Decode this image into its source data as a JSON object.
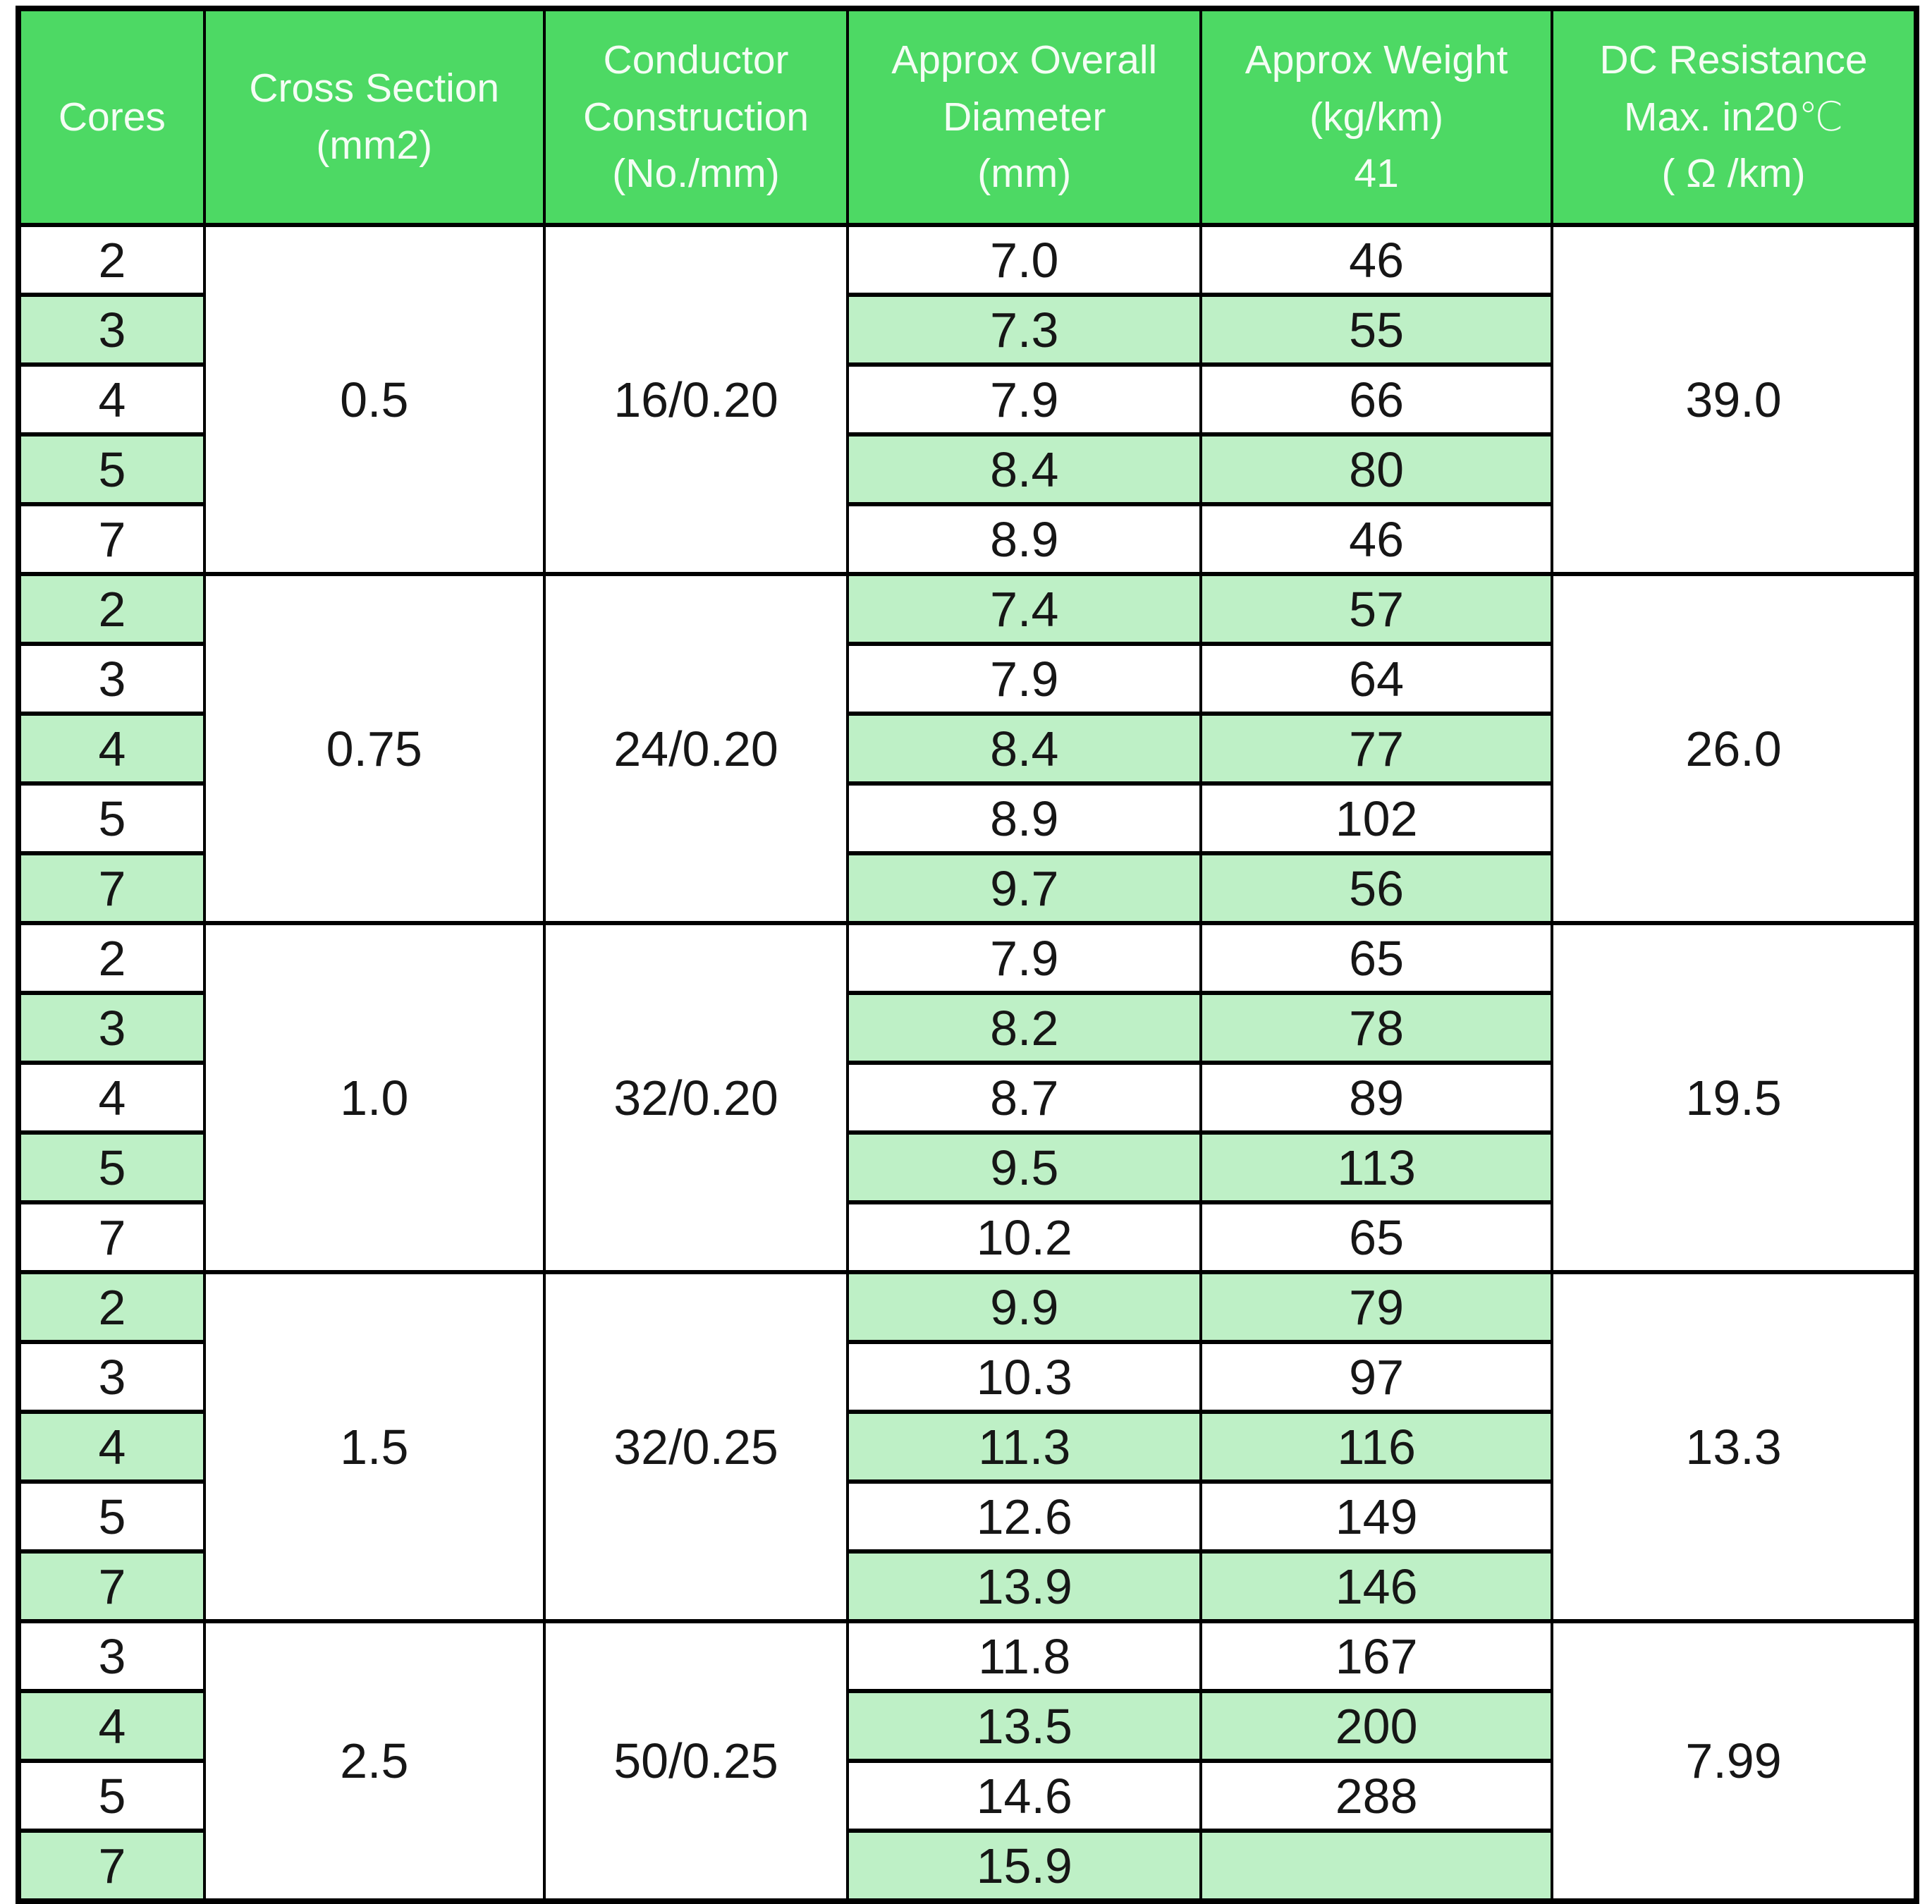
{
  "colors": {
    "header_bg": "#4dd964",
    "stripe_bg": "#bef0c6",
    "border": "#000000",
    "header_text": "#f4fdf4",
    "cell_text": "#161616"
  },
  "table": {
    "headers": [
      {
        "lines": [
          "Cores"
        ]
      },
      {
        "lines": [
          "Cross Section",
          "(mm2)"
        ]
      },
      {
        "lines": [
          "Conductor",
          "Construction",
          "(No./mm)"
        ]
      },
      {
        "lines": [
          "Approx Overall",
          "Diameter",
          "(mm)"
        ]
      },
      {
        "lines": [
          "Approx Weight",
          "(kg/km)",
          "41"
        ]
      },
      {
        "lines": [
          "DC Resistance",
          "Max. in20℃",
          "( Ω /km)"
        ]
      }
    ],
    "groups": [
      {
        "cross_section": "0.5",
        "construction": "16/0.20",
        "dc_resistance": "39.0",
        "rows": [
          {
            "cores": "2",
            "diameter": "7.0",
            "weight": "46"
          },
          {
            "cores": "3",
            "diameter": "7.3",
            "weight": "55"
          },
          {
            "cores": "4",
            "diameter": "7.9",
            "weight": "66"
          },
          {
            "cores": "5",
            "diameter": "8.4",
            "weight": "80"
          },
          {
            "cores": "7",
            "diameter": "8.9",
            "weight": "46"
          }
        ]
      },
      {
        "cross_section": "0.75",
        "construction": "24/0.20",
        "dc_resistance": "26.0",
        "rows": [
          {
            "cores": "2",
            "diameter": "7.4",
            "weight": "57"
          },
          {
            "cores": "3",
            "diameter": "7.9",
            "weight": "64"
          },
          {
            "cores": "4",
            "diameter": "8.4",
            "weight": "77"
          },
          {
            "cores": "5",
            "diameter": "8.9",
            "weight": "102"
          },
          {
            "cores": "7",
            "diameter": "9.7",
            "weight": "56"
          }
        ]
      },
      {
        "cross_section": "1.0",
        "construction": "32/0.20",
        "dc_resistance": "19.5",
        "rows": [
          {
            "cores": "2",
            "diameter": "7.9",
            "weight": "65"
          },
          {
            "cores": "3",
            "diameter": "8.2",
            "weight": "78"
          },
          {
            "cores": "4",
            "diameter": "8.7",
            "weight": "89"
          },
          {
            "cores": "5",
            "diameter": "9.5",
            "weight": "113"
          },
          {
            "cores": "7",
            "diameter": "10.2",
            "weight": "65"
          }
        ]
      },
      {
        "cross_section": "1.5",
        "construction": "32/0.25",
        "dc_resistance": "13.3",
        "rows": [
          {
            "cores": "2",
            "diameter": "9.9",
            "weight": "79"
          },
          {
            "cores": "3",
            "diameter": "10.3",
            "weight": "97"
          },
          {
            "cores": "4",
            "diameter": "11.3",
            "weight": "116"
          },
          {
            "cores": "5",
            "diameter": "12.6",
            "weight": "149"
          },
          {
            "cores": "7",
            "diameter": "13.9",
            "weight": "146"
          }
        ]
      },
      {
        "cross_section": "2.5",
        "construction": "50/0.25",
        "dc_resistance": "7.99",
        "rows": [
          {
            "cores": "3",
            "diameter": "11.8",
            "weight": "167"
          },
          {
            "cores": "4",
            "diameter": "13.5",
            "weight": "200"
          },
          {
            "cores": "5",
            "diameter": "14.6",
            "weight": "288"
          },
          {
            "cores": "7",
            "diameter": "15.9",
            "weight": ""
          }
        ]
      }
    ]
  }
}
